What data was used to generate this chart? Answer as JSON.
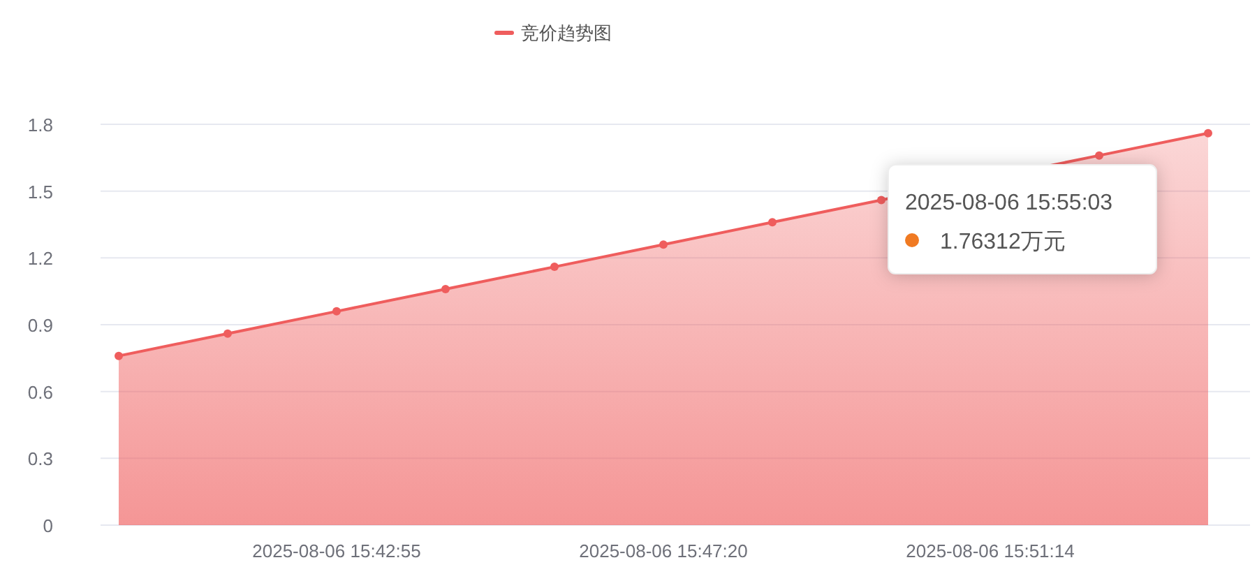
{
  "chart_data": {
    "type": "area",
    "categories": [
      null,
      null,
      "2025-08-06 15:42:55",
      null,
      null,
      "2025-08-06 15:47:20",
      null,
      null,
      "2025-08-06 15:51:14",
      null,
      null
    ],
    "series": [
      {
        "name": "竞价趋势图",
        "color": "#ef5d5d",
        "values": [
          0.76,
          0.86,
          0.96,
          1.06,
          1.16,
          1.26,
          1.36,
          1.46,
          null,
          1.66,
          1.76
        ]
      }
    ],
    "ylim": [
      0,
      1.8
    ],
    "yticks": [
      0,
      0.3,
      0.6,
      0.9,
      1.2,
      1.5,
      1.8
    ],
    "grid": "y",
    "legend": "top",
    "marker": "circle",
    "annotations": [
      "2025-08-06 15:55:03",
      "1.76312万元"
    ]
  }
}
